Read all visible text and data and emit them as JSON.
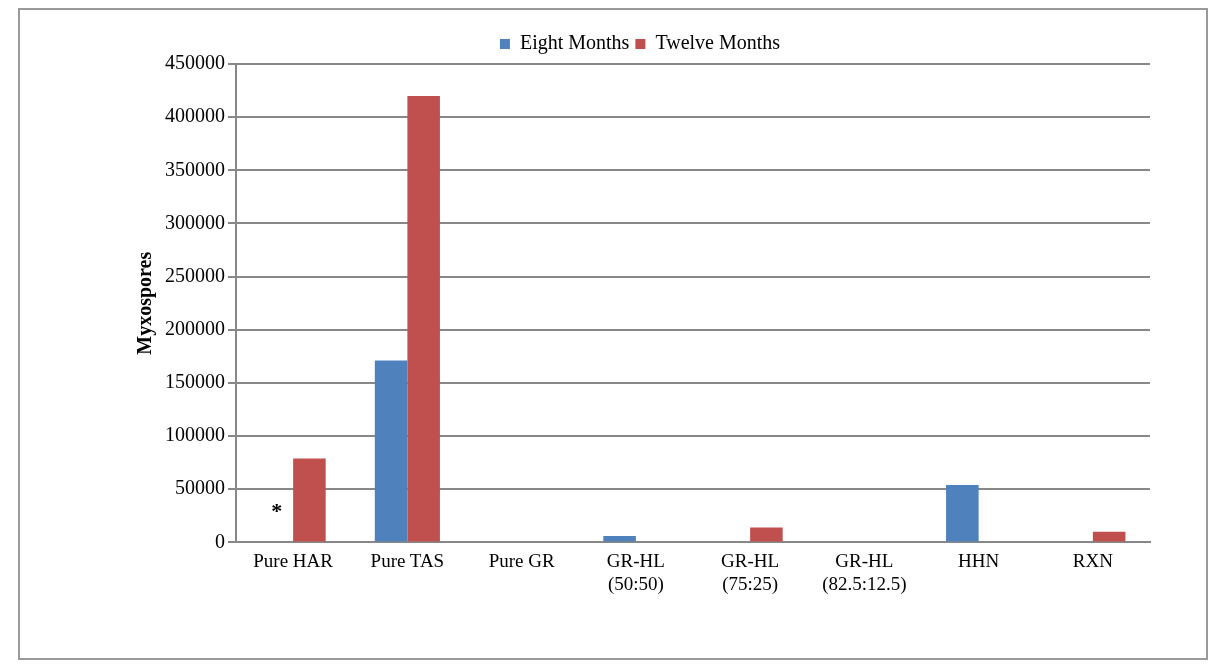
{
  "chart_data": {
    "type": "bar",
    "ylabel": "Myxospores",
    "categories": [
      "Pure HAR",
      "Pure TAS",
      "Pure GR",
      "GR-HL (50:50)",
      "GR-HL (75:25)",
      "GR-HL (82.5:12.5)",
      "HHN",
      "RXN"
    ],
    "series": [
      {
        "name": "Eight Months",
        "color": "#4f81bd",
        "values": [
          0,
          171000,
          0,
          6000,
          0,
          0,
          54000,
          0
        ]
      },
      {
        "name": "Twelve Months",
        "color": "#c0504d",
        "values": [
          79000,
          420000,
          0,
          0,
          14000,
          0,
          0,
          10000
        ]
      }
    ],
    "ylim": [
      0,
      450000
    ],
    "yticks": [
      0,
      50000,
      100000,
      150000,
      200000,
      250000,
      300000,
      350000,
      400000,
      450000
    ],
    "grid": "y",
    "legend": "top",
    "annotations": [
      {
        "text": "*",
        "x": "Pure HAR",
        "y": 28000
      }
    ]
  }
}
